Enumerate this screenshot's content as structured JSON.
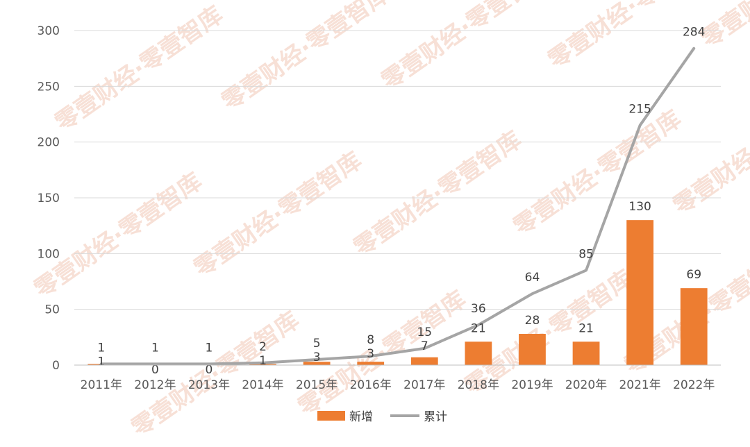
{
  "chart_data": {
    "type": "bar",
    "categories": [
      "2011年",
      "2012年",
      "2013年",
      "2014年",
      "2015年",
      "2016年",
      "2017年",
      "2018年",
      "2019年",
      "2020年",
      "2021年",
      "2022年"
    ],
    "series": [
      {
        "name": "新增",
        "type": "bar",
        "color": "#ED7D31",
        "values": [
          1,
          0,
          0,
          1,
          3,
          3,
          7,
          21,
          28,
          21,
          130,
          69
        ]
      },
      {
        "name": "累计",
        "type": "line",
        "color": "#A5A5A5",
        "values": [
          1,
          1,
          1,
          2,
          5,
          8,
          15,
          36,
          64,
          85,
          215,
          284
        ]
      }
    ],
    "ylim": [
      0,
      300
    ],
    "yticks": [
      0,
      50,
      100,
      150,
      200,
      250,
      300
    ],
    "grid": true,
    "legend_position": "bottom"
  },
  "watermark": "零壹财经·零壹智库"
}
